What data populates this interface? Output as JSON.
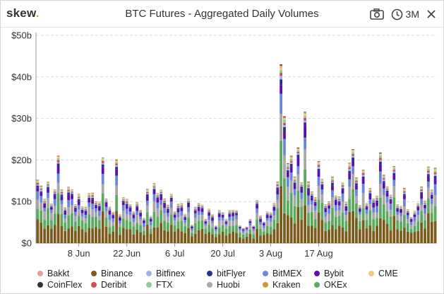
{
  "app": {
    "logo_text": "skew",
    "logo_dot": ".",
    "logo_dot_color": "#e3a21a"
  },
  "header": {
    "title": "BTC Futures - Aggregated Daily Volumes",
    "camera_icon": "camera-icon",
    "range_icon": "clock-icon",
    "range_label": "3M",
    "close_icon": "close-icon"
  },
  "chart_data": {
    "type": "bar",
    "stacked": true,
    "title": "BTC Futures - Aggregated Daily Volumes",
    "xlabel": "",
    "ylabel": "",
    "unit": "$b",
    "ylim": [
      0,
      50
    ],
    "yticks": [
      0,
      10,
      20,
      30,
      40,
      50
    ],
    "ytick_labels": [
      "$0",
      "$10b",
      "$20b",
      "$30b",
      "$40b",
      "$50b"
    ],
    "grid": "horizontal-dashed",
    "legend_position": "bottom",
    "x_start": "2020-05-27",
    "xtick_labels": [
      "8 Jun",
      "22 Jun",
      "6 Jul",
      "20 Jul",
      "3 Aug",
      "17 Aug"
    ],
    "xtick_dates": [
      "2020-06-08",
      "2020-06-22",
      "2020-07-06",
      "2020-07-20",
      "2020-08-03",
      "2020-08-17"
    ],
    "totals": [
      15.2,
      13.8,
      10.6,
      14.7,
      9.5,
      12.9,
      21.0,
      12.9,
      8.6,
      13.5,
      12.9,
      9.3,
      11.8,
      8.8,
      8.7,
      12.0,
      12.1,
      10.0,
      9.9,
      20.6,
      10.7,
      8.7,
      7.5,
      20.1,
      6.9,
      11.0,
      10.6,
      9.3,
      7.6,
      9.8,
      8.0,
      6.1,
      13.0,
      6.5,
      14.4,
      12.0,
      12.8,
      10.7,
      9.2,
      11.8,
      7.6,
      9.4,
      9.6,
      7.0,
      10.6,
      4.4,
      8.7,
      9.6,
      9.2,
      5.8,
      8.2,
      6.9,
      4.3,
      7.9,
      7.4,
      5.8,
      7.9,
      8.0,
      7.9,
      4.3,
      3.7,
      4.0,
      5.8,
      4.3,
      10.3,
      6.6,
      5.2,
      7.6,
      7.4,
      9.6,
      14.8,
      43.0,
      30.5,
      19.2,
      21.0,
      16.0,
      23.0,
      14.6,
      31.6,
      14.8,
      12.4,
      11.0,
      19.7,
      15.4,
      9.3,
      10.0,
      16.0,
      11.4,
      11.2,
      14.5,
      9.9,
      19.3,
      22.6,
      15.8,
      9.1,
      17.6,
      9.6,
      13.2,
      10.7,
      11.3,
      21.8,
      16.4,
      13.6,
      11.6,
      18.5,
      9.3,
      8.9,
      13.2,
      8.1,
      6.3,
      7.7,
      9.6,
      13.6,
      10.2,
      18.4,
      12.8,
      18.1
    ],
    "series": [
      {
        "name": "Binance",
        "color": "#7b5a1c",
        "share": 0.33
      },
      {
        "name": "OKEx",
        "color": "#5aab5f",
        "share": 0.22
      },
      {
        "name": "Huobi",
        "color": "#a8a8a8",
        "share": 0.15
      },
      {
        "name": "BitMEX",
        "color": "#6d86dd",
        "share": 0.11
      },
      {
        "name": "Bybit",
        "color": "#5a0fae",
        "share": 0.07
      },
      {
        "name": "bitFlyer",
        "color": "#2b2f8e",
        "share": 0.03
      },
      {
        "name": "Bitfinex",
        "color": "#9fb1ee",
        "share": 0.02
      },
      {
        "name": "Deribit",
        "color": "#d34f4f",
        "share": 0.02
      },
      {
        "name": "FTX",
        "color": "#8fcb99",
        "share": 0.02
      },
      {
        "name": "CME",
        "color": "#efcb84",
        "share": 0.015
      },
      {
        "name": "Kraken",
        "color": "#c79a35",
        "share": 0.005
      },
      {
        "name": "Bakkt",
        "color": "#e99a9a",
        "share": 0.005
      },
      {
        "name": "CoinFlex",
        "color": "#333333",
        "share": 0.005
      }
    ],
    "legend_rows": [
      [
        "Bakkt",
        "Binance",
        "Bitfinex",
        "bitFlyer",
        "BitMEX",
        "Bybit",
        "CME"
      ],
      [
        "CoinFlex",
        "Deribit",
        "FTX",
        "Huobi",
        "Kraken",
        "OKEx"
      ]
    ]
  }
}
